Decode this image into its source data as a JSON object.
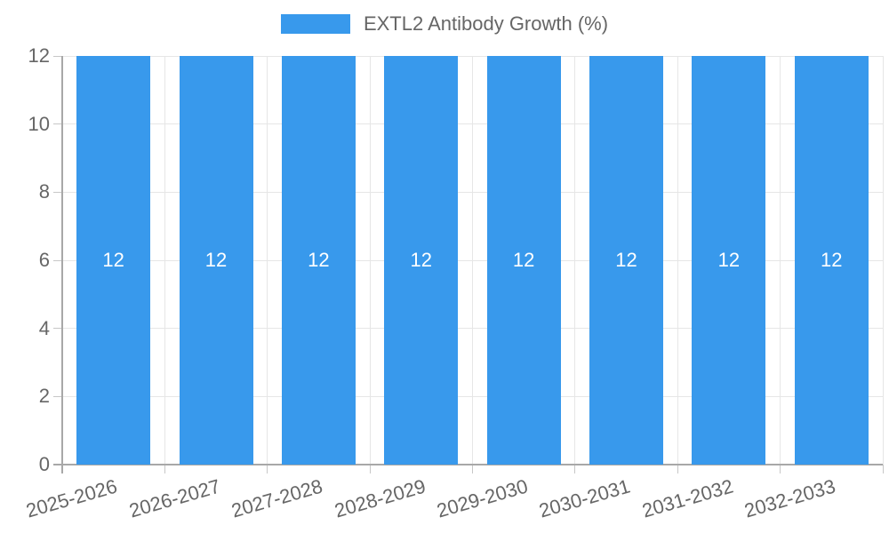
{
  "legend": {
    "item_label": "EXTL2 Antibody Growth (%)"
  },
  "chart_data": {
    "type": "bar",
    "title": "EXTL2 Antibody Growth (%)",
    "categories": [
      "2025-2026",
      "2026-2027",
      "2027-2028",
      "2028-2029",
      "2029-2030",
      "2030-2031",
      "2031-2032",
      "2032-2033"
    ],
    "values": [
      12,
      12,
      12,
      12,
      12,
      12,
      12,
      12
    ],
    "bar_value_labels": [
      "12",
      "12",
      "12",
      "12",
      "12",
      "12",
      "12",
      "12"
    ],
    "xlabel": "",
    "ylabel": "",
    "ylim": [
      0,
      12
    ],
    "yticks": [
      0,
      2,
      4,
      6,
      8,
      10,
      12
    ],
    "grid": true,
    "legend_position": "top",
    "colors": {
      "bar": "#3899EC",
      "text": "#666666",
      "grid": "#E6E6E6",
      "tick": "#C7C7C7",
      "axis": "#A8A8A8",
      "bar_label": "#FFFFFF",
      "background": "#FFFFFF"
    }
  }
}
